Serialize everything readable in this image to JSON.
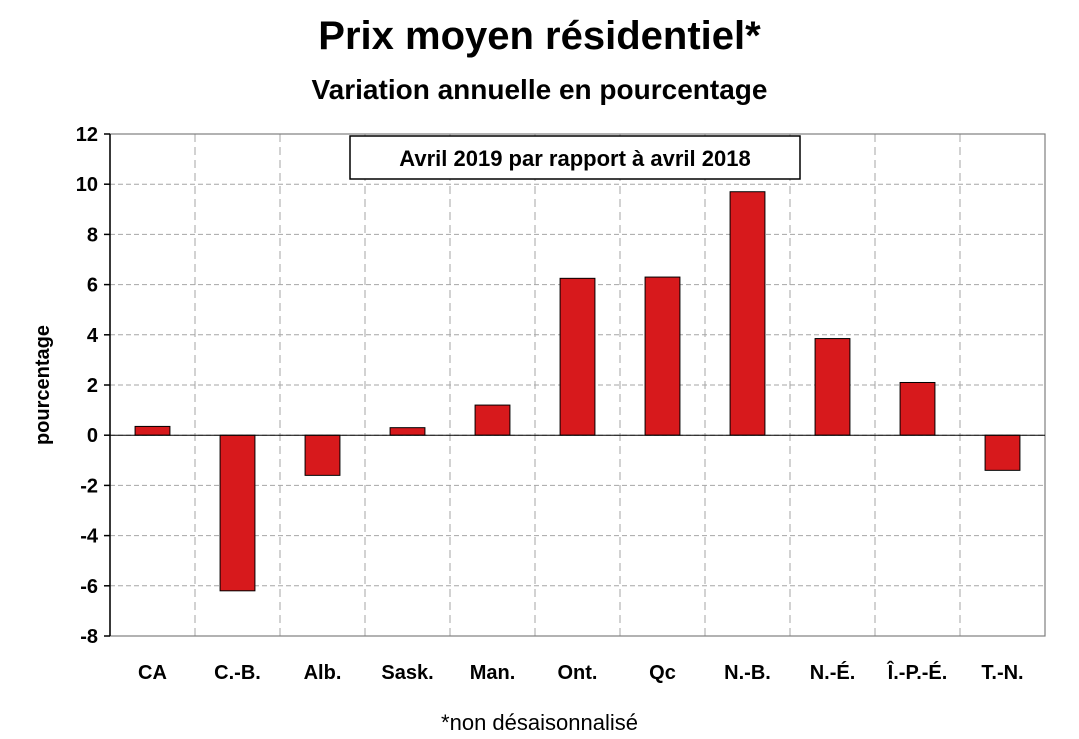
{
  "chart_data": {
    "type": "bar",
    "title": "Prix moyen résidentiel*",
    "subtitle": "Variation annuelle en pourcentage",
    "annotation": "Avril 2019 par rapport à avril 2018",
    "footnote": "*non désaisonnalisé",
    "xlabel": "",
    "ylabel": "pourcentage",
    "ylim": [
      -8,
      12
    ],
    "yticks": [
      12,
      10,
      8,
      6,
      4,
      2,
      0,
      -2,
      -4,
      -6,
      -8
    ],
    "grid": true,
    "categories": [
      "CA",
      "C.-B.",
      "Alb.",
      "Sask.",
      "Man.",
      "Ont.",
      "Qc",
      "N.-B.",
      "N.-É.",
      "Î.-P.-É.",
      "T.-N."
    ],
    "values": [
      0.35,
      -6.2,
      -1.6,
      0.3,
      1.2,
      6.25,
      6.3,
      9.7,
      3.85,
      2.1,
      -1.4
    ],
    "bar_color": "#d7191c"
  }
}
